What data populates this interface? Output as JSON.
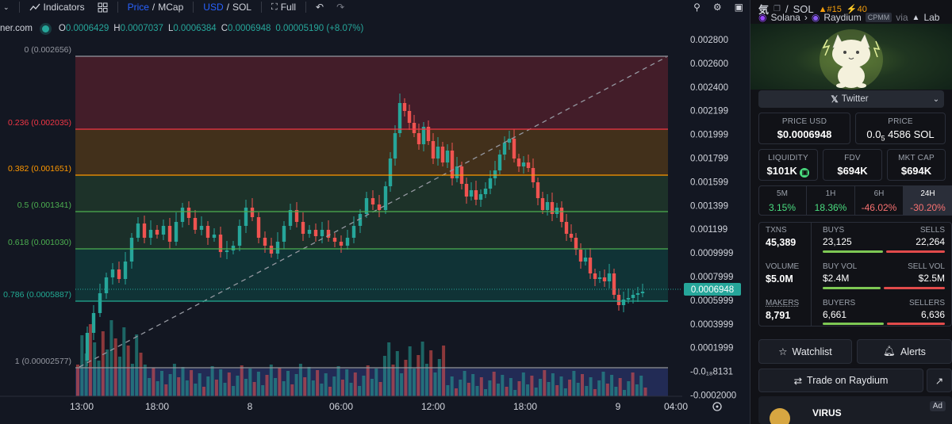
{
  "toolbar": {
    "indicators": "Indicators",
    "price": "Price",
    "mcap": "MCap",
    "usd": "USD",
    "sol": "SOL",
    "full": "Full",
    "slash": "/"
  },
  "legend": {
    "source": "ner.com",
    "o_label": "O",
    "o_val": "0.0006429",
    "h_label": "H",
    "h_val": "0.0007037",
    "l_label": "L",
    "l_val": "0.0006384",
    "c_label": "C",
    "c_val": "0.0006948",
    "change": "0.00005190 (+8.07%)"
  },
  "price_axis": [
    "0.002800",
    "0.002600",
    "0.002400",
    "0.002199",
    "0.001999",
    "0.001799",
    "0.001599",
    "0.001399",
    "0.001199",
    "0.0009999",
    "0.0007999",
    "0.0005999",
    "0.0003999",
    "0.0001999",
    "-0.0₁₈8131",
    "-0.0002000"
  ],
  "current_price": "0.0006948",
  "time_axis": [
    "13:00",
    "18:00",
    "8",
    "06:00",
    "12:00",
    "18:00",
    "9",
    "04:00"
  ],
  "fib_levels": [
    {
      "label": "0 (0.002656)",
      "color": "#9598a1"
    },
    {
      "label": "0.236 (0.002035)",
      "color": "#f23645"
    },
    {
      "label": "0.382 (0.001651)",
      "color": "#ff9800"
    },
    {
      "label": "0.5 (0.001341)",
      "color": "#4caf50"
    },
    {
      "label": "0.618 (0.001030)",
      "color": "#4caf50"
    },
    {
      "label": "0.786 (0.0005887)",
      "color": "#22ab94"
    },
    {
      "label": "1 (0.00002577)",
      "color": "#9598a1"
    }
  ],
  "panel": {
    "pair_base": "気",
    "pair_sep": "/",
    "pair_quote": "SOL",
    "rank": "#15",
    "boost": "40",
    "chain": "Solana",
    "dex": "Raydium",
    "dex_tag": "CPMM",
    "via": "via",
    "via_name": "Lab",
    "twitter": "Twitter",
    "price_usd_label": "PRICE USD",
    "price_usd": "$0.0006948",
    "price_sol_label": "PRICE",
    "price_sol_pre": "0.0",
    "price_sol_sub": "5",
    "price_sol_post": "4586 SOL",
    "liquidity_label": "LIQUIDITY",
    "liquidity": "$101K",
    "fdv_label": "FDV",
    "fdv": "$694K",
    "mcap_label": "MKT CAP",
    "mcap": "$694K",
    "timeframes": [
      {
        "label": "5M",
        "pct": "3.15%",
        "color": "#4ade80"
      },
      {
        "label": "1H",
        "pct": "18.36%",
        "color": "#4ade80"
      },
      {
        "label": "6H",
        "pct": "-46.02%",
        "color": "#f87171"
      },
      {
        "label": "24H",
        "pct": "-30.20%",
        "color": "#f87171"
      }
    ],
    "txns_label": "TXNS",
    "txns": "45,389",
    "buys_label": "BUYS",
    "buys": "23,125",
    "sells_label": "SELLS",
    "sells": "22,264",
    "volume_label": "VOLUME",
    "volume": "$5.0M",
    "buyvol_label": "BUY VOL",
    "buyvol": "$2.4M",
    "sellvol_label": "SELL VOL",
    "sellvol": "$2.5M",
    "makers_label": "MAKERS",
    "makers": "8,791",
    "buyers_label": "BUYERS",
    "buyers": "6,661",
    "sellers_label": "SELLERS",
    "sellers": "6,636",
    "watchlist": "Watchlist",
    "alerts": "Alerts",
    "trade": "Trade on Raydium",
    "ad_name": "VIRUS",
    "ad_tag": "Ad"
  },
  "colors": {
    "up": "#26a69a",
    "down": "#ef5350",
    "accent": "#2962ff"
  }
}
